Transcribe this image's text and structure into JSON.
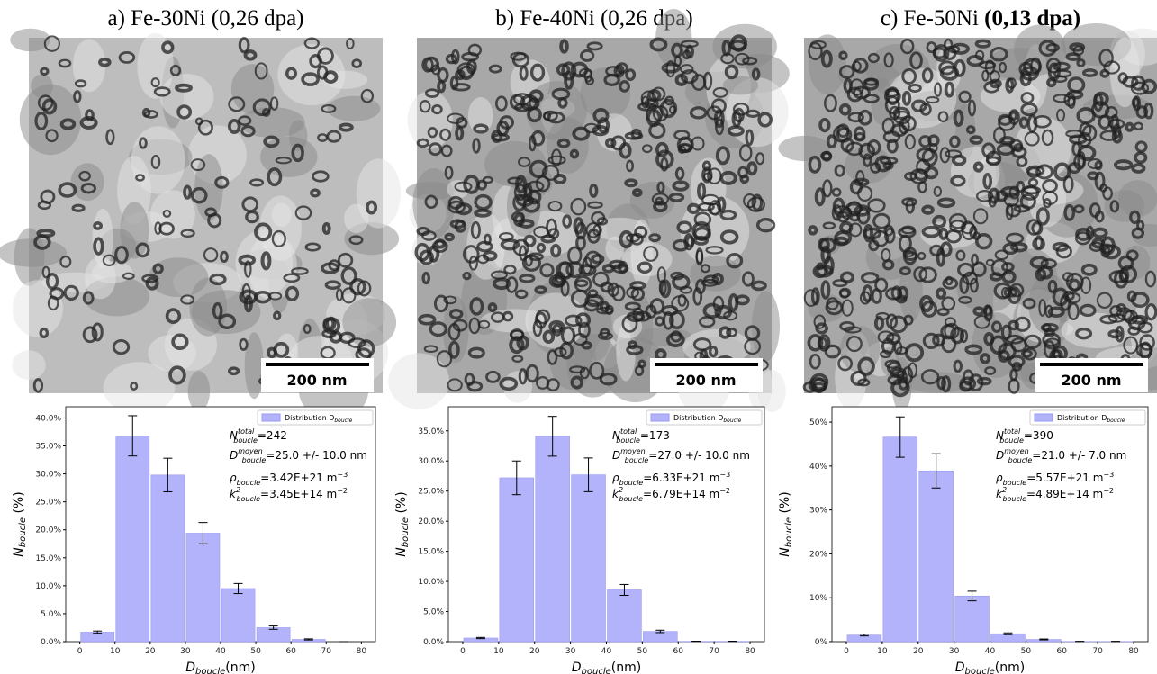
{
  "panels": [
    {
      "title": "a) Fe-30Ni (0,26 dpa)",
      "scale_bar": "200 nm"
    },
    {
      "title": "b) Fe-40Ni (0,26 dpa)",
      "scale_bar": "200 nm"
    },
    {
      "title": "c) Fe-50Ni",
      "title_bold": "(0,13 dpa)",
      "scale_bar": "200 nm"
    }
  ],
  "chart_data": [
    {
      "type": "histogram",
      "bins": [
        0,
        10,
        20,
        30,
        40,
        50,
        60,
        70,
        80
      ],
      "series": [
        {
          "name": "Distribution D",
          "name_sub": "boucle",
          "color": "#b3b3fb",
          "values": [
            1.7,
            36.8,
            29.8,
            19.4,
            9.5,
            2.5,
            0.4,
            0
          ],
          "errors": [
            0.2,
            3.6,
            3.0,
            1.9,
            0.9,
            0.3,
            0.1,
            0
          ]
        }
      ],
      "xlim": [
        -4,
        84
      ],
      "xticks": [
        0,
        10,
        20,
        30,
        40,
        50,
        60,
        70,
        80
      ],
      "ylim": [
        0,
        42
      ],
      "yticks": [
        {
          "value": 0,
          "label": "0.0%"
        },
        {
          "value": 5,
          "label": "5.0%"
        },
        {
          "value": 10,
          "label": "10.0%"
        },
        {
          "value": 15,
          "label": "15.0%"
        },
        {
          "value": 20,
          "label": "20.0%"
        },
        {
          "value": 25,
          "label": "25.0%"
        },
        {
          "value": 30,
          "label": "30.0%"
        },
        {
          "value": 35,
          "label": "35.0%"
        },
        {
          "value": 40,
          "label": "40.0%"
        }
      ],
      "xlabel": {
        "text": "D",
        "sub": "boucle",
        "after": "(nm)"
      },
      "ylabel": {
        "text": "N",
        "sub": "boucle",
        "after": " (%)"
      },
      "annotations": [
        {
          "symbol": "N",
          "sub": "boucle",
          "sup": "total",
          "text": "=242"
        },
        {
          "symbol": "D",
          "sub": "boucle",
          "sup": "moyen",
          "text": "=25.0 +/- 10.0 nm"
        },
        {
          "symbol": "ρ",
          "sub": "boucle",
          "text": "=3.42E+21 m",
          "sup_end": "−3"
        },
        {
          "symbol": "k",
          "sub": "boucle",
          "sup": "2",
          "text": "=3.45E+14 m",
          "sup_end": "−2"
        }
      ],
      "legend": "upper right"
    },
    {
      "type": "histogram",
      "bins": [
        0,
        10,
        20,
        30,
        40,
        50,
        60,
        70,
        80
      ],
      "series": [
        {
          "name": "Distribution D",
          "name_sub": "boucle",
          "color": "#b3b3fb",
          "values": [
            0.6,
            27.2,
            34.1,
            27.7,
            8.6,
            1.7,
            0.05,
            0.05
          ],
          "errors": [
            0.1,
            2.8,
            3.3,
            2.8,
            0.9,
            0.2,
            0.02,
            0.02
          ]
        }
      ],
      "xlim": [
        -4,
        84
      ],
      "xticks": [
        0,
        10,
        20,
        30,
        40,
        50,
        60,
        70,
        80
      ],
      "ylim": [
        0,
        39
      ],
      "yticks": [
        {
          "value": 0,
          "label": "0.0%"
        },
        {
          "value": 5,
          "label": "5.0%"
        },
        {
          "value": 10,
          "label": "10.0%"
        },
        {
          "value": 15,
          "label": "15.0%"
        },
        {
          "value": 20,
          "label": "20.0%"
        },
        {
          "value": 25,
          "label": "25.0%"
        },
        {
          "value": 30,
          "label": "30.0%"
        },
        {
          "value": 35,
          "label": "35.0%"
        }
      ],
      "xlabel": {
        "text": "D",
        "sub": "boucle",
        "after": "(nm)"
      },
      "ylabel": {
        "text": "N",
        "sub": "boucle",
        "after": " (%)"
      },
      "annotations": [
        {
          "symbol": "N",
          "sub": "boucle",
          "sup": "total",
          "text": "=173"
        },
        {
          "symbol": "D",
          "sub": "boucle",
          "sup": "moyen",
          "text": "=27.0 +/- 10.0 nm"
        },
        {
          "symbol": "ρ",
          "sub": "boucle",
          "text": "=6.33E+21 m",
          "sup_end": "−3"
        },
        {
          "symbol": "k",
          "sub": "boucle",
          "sup": "2",
          "text": "=6.79E+14 m",
          "sup_end": "−2"
        }
      ],
      "legend": "upper right"
    },
    {
      "type": "histogram",
      "bins": [
        0,
        10,
        20,
        30,
        40,
        50,
        60,
        70,
        80
      ],
      "series": [
        {
          "name": "Distribution D",
          "name_sub": "boucle",
          "color": "#b3b3fb",
          "values": [
            1.5,
            46.6,
            38.9,
            10.4,
            1.8,
            0.5,
            0.05,
            0.05
          ],
          "errors": [
            0.2,
            4.6,
            3.9,
            1.1,
            0.2,
            0.1,
            0.02,
            0.02
          ]
        }
      ],
      "xlim": [
        -4,
        84
      ],
      "xticks": [
        0,
        10,
        20,
        30,
        40,
        50,
        60,
        70,
        80
      ],
      "ylim": [
        0,
        53.5
      ],
      "yticks": [
        {
          "value": 0,
          "label": "0%"
        },
        {
          "value": 10,
          "label": "10%"
        },
        {
          "value": 20,
          "label": "20%"
        },
        {
          "value": 30,
          "label": "30%"
        },
        {
          "value": 40,
          "label": "40%"
        },
        {
          "value": 50,
          "label": "50%"
        }
      ],
      "xlabel": {
        "text": "D",
        "sub": "boucle",
        "after": "(nm)"
      },
      "ylabel": {
        "text": "N",
        "sub": "boucle",
        "after": " (%)"
      },
      "annotations": [
        {
          "symbol": "N",
          "sub": "boucle",
          "sup": "total",
          "text": "=390"
        },
        {
          "symbol": "D",
          "sub": "boucle",
          "sup": "moyen",
          "text": "=21.0 +/- 7.0 nm"
        },
        {
          "symbol": "ρ",
          "sub": "boucle",
          "text": "=5.57E+21 m",
          "sup_end": "−3"
        },
        {
          "symbol": "k",
          "sub": "boucle",
          "sup": "2",
          "text": "=4.89E+14 m",
          "sup_end": "−2"
        }
      ],
      "legend": "upper right"
    }
  ]
}
